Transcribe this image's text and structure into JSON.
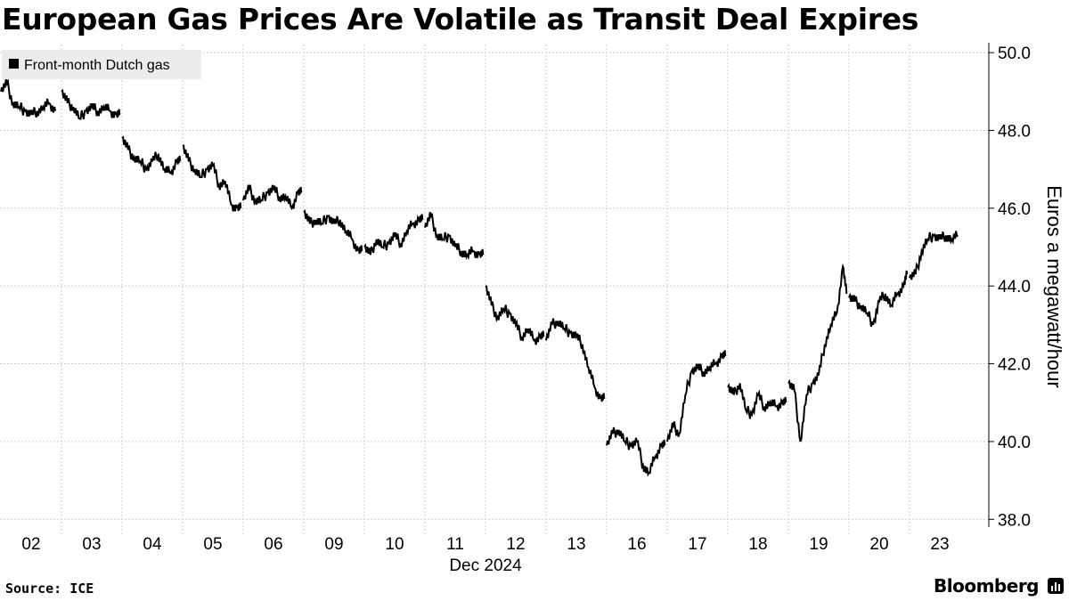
{
  "title": "European Gas Prices Are Volatile as Transit Deal Expires",
  "source": "Source: ICE",
  "brand": "Bloomberg",
  "brand_icon": "bloomberg-terminal-icon",
  "colors": {
    "line": "#000000",
    "grid": "#bfbfbf",
    "legend_bg": "#ececec",
    "background": "#ffffff"
  },
  "chart_data": {
    "type": "line",
    "title": "European Gas Prices Are Volatile as Transit Deal Expires",
    "xlabel": "Dec 2024",
    "ylabel": "Euros a megawatt/hour",
    "ylim": [
      37.8,
      50.3
    ],
    "yticks": [
      38.0,
      40.0,
      42.0,
      44.0,
      46.0,
      48.0,
      50.0
    ],
    "ytick_labels": [
      "38.0",
      "40.0",
      "42.0",
      "44.0",
      "46.0",
      "48.0",
      "50.0"
    ],
    "x_categories": [
      "02",
      "03",
      "04",
      "05",
      "06",
      "09",
      "10",
      "11",
      "12",
      "13",
      "16",
      "17",
      "18",
      "19",
      "20",
      "23"
    ],
    "x_month_label": "Dec 2024",
    "grid": true,
    "legend": {
      "position": "top-left",
      "entries": [
        "Front-month Dutch gas"
      ]
    },
    "series": [
      {
        "name": "Front-month Dutch gas",
        "x": [
          0,
          0.1,
          0.2,
          0.3,
          0.4,
          0.5,
          0.6,
          0.7,
          0.8,
          0.9,
          1.0,
          1.1,
          1.2,
          1.3,
          1.4,
          1.5,
          1.6,
          1.7,
          1.8,
          1.9,
          1.96,
          2.0,
          2.1,
          2.2,
          2.3,
          2.4,
          2.5,
          2.6,
          2.7,
          2.8,
          2.9,
          2.96,
          3.0,
          3.1,
          3.2,
          3.3,
          3.4,
          3.5,
          3.6,
          3.7,
          3.8,
          3.9,
          3.96,
          4.0,
          4.1,
          4.2,
          4.3,
          4.4,
          4.5,
          4.6,
          4.7,
          4.8,
          4.9,
          4.96,
          5.0,
          5.1,
          5.2,
          5.3,
          5.4,
          5.5,
          5.6,
          5.7,
          5.8,
          5.9,
          5.96,
          6.0,
          6.1,
          6.2,
          6.3,
          6.4,
          6.5,
          6.6,
          6.7,
          6.8,
          6.9,
          6.96,
          7.0,
          7.1,
          7.2,
          7.3,
          7.4,
          7.5,
          7.6,
          7.7,
          7.8,
          7.9,
          7.96,
          8.0,
          8.1,
          8.2,
          8.3,
          8.4,
          8.5,
          8.6,
          8.7,
          8.8,
          8.9,
          8.96,
          9.0,
          9.1,
          9.2,
          9.3,
          9.4,
          9.5,
          9.6,
          9.7,
          9.8,
          9.9,
          9.96,
          10.0,
          10.1,
          10.2,
          10.3,
          10.4,
          10.5,
          10.6,
          10.7,
          10.8,
          10.9,
          10.96,
          11.0,
          11.1,
          11.2,
          11.3,
          11.4,
          11.5,
          11.6,
          11.7,
          11.8,
          11.9,
          11.96,
          12.0,
          12.1,
          12.2,
          12.3,
          12.4,
          12.5,
          12.6,
          12.7,
          12.8,
          12.9,
          12.96,
          13.0,
          13.1,
          13.2,
          13.3,
          13.4,
          13.5,
          13.6,
          13.7,
          13.8,
          13.9,
          13.96,
          14.0,
          14.1,
          14.2,
          14.3,
          14.4,
          14.5,
          14.6,
          14.7,
          14.8,
          14.9,
          14.96,
          15.0,
          15.1,
          15.2,
          15.3,
          15.4,
          15.5,
          15.6,
          15.7,
          15.8
        ],
        "values": [
          49.0,
          49.2,
          48.7,
          48.6,
          48.5,
          48.4,
          48.5,
          48.6,
          48.7,
          48.5,
          49.0,
          48.7,
          48.6,
          48.3,
          48.5,
          48.6,
          48.5,
          48.6,
          48.5,
          48.4,
          48.4,
          47.8,
          47.5,
          47.3,
          47.2,
          47.0,
          47.2,
          47.4,
          47.0,
          46.9,
          47.2,
          47.2,
          47.6,
          47.2,
          47.0,
          46.8,
          47.0,
          47.1,
          46.6,
          46.7,
          46.1,
          46.0,
          46.0,
          46.2,
          46.5,
          46.2,
          46.2,
          46.4,
          46.5,
          46.3,
          46.3,
          46.0,
          46.4,
          46.4,
          45.9,
          45.6,
          45.7,
          45.6,
          45.8,
          45.6,
          45.7,
          45.4,
          45.2,
          44.9,
          44.9,
          45.0,
          44.8,
          45.2,
          45.0,
          45.1,
          45.3,
          45.1,
          45.4,
          45.6,
          45.7,
          45.7,
          45.5,
          45.8,
          45.3,
          45.2,
          45.3,
          45.0,
          44.9,
          44.8,
          44.9,
          44.8,
          44.8,
          44.0,
          43.5,
          43.2,
          43.4,
          43.3,
          43.0,
          42.7,
          42.9,
          42.6,
          42.7,
          42.7,
          42.6,
          43.0,
          43.1,
          42.9,
          42.8,
          42.7,
          42.5,
          41.9,
          41.4,
          41.1,
          41.1,
          39.9,
          40.2,
          40.3,
          40.0,
          39.9,
          40.0,
          39.4,
          39.2,
          39.6,
          39.9,
          39.9,
          40.0,
          40.4,
          40.2,
          41.2,
          41.8,
          41.9,
          41.8,
          41.9,
          42.0,
          42.2,
          42.2,
          41.4,
          41.2,
          41.5,
          40.8,
          40.7,
          41.2,
          40.9,
          41.0,
          40.9,
          41.0,
          41.0,
          41.5,
          41.3,
          40.0,
          41.2,
          41.5,
          41.7,
          42.5,
          43.0,
          43.3,
          44.5,
          43.8,
          43.7,
          43.6,
          43.5,
          43.3,
          43.0,
          43.6,
          43.8,
          43.5,
          43.8,
          44.0,
          44.3,
          44.2,
          44.3,
          44.9,
          45.2,
          45.3,
          45.2,
          45.3,
          45.2,
          45.3
        ],
        "color": "#000000"
      }
    ]
  }
}
